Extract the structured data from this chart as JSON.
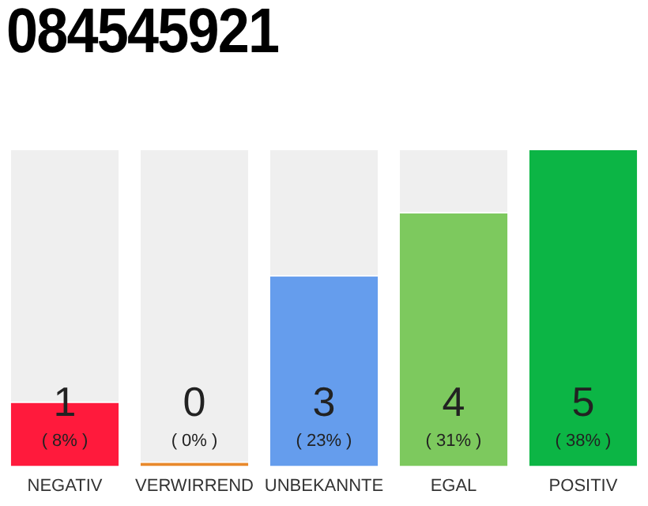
{
  "chart_data": {
    "type": "bar",
    "title": "084545921",
    "categories": [
      "NEGATIV",
      "VERWIRREND",
      "UNBEKANNTE",
      "EGAL",
      "POSITIV"
    ],
    "values": [
      1,
      0,
      3,
      4,
      5
    ],
    "colors": [
      "#ff1a3c",
      "#e8892c",
      "#659ded",
      "#7dc95e",
      "#0cb545"
    ],
    "data_labels": true,
    "annotations": [
      "( 8% )",
      "( 0% )",
      "( 23% )",
      "( 31% )",
      "( 38% )"
    ],
    "grid": false,
    "legend": false
  }
}
